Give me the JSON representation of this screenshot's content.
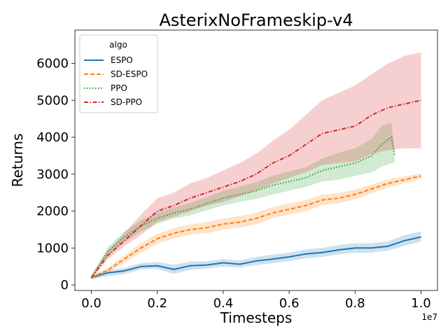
{
  "chart_data": {
    "type": "line",
    "title": "AsterixNoFrameskip-v4",
    "xlabel": "Timesteps",
    "ylabel": "Returns",
    "x_scale_label": "1e7",
    "xlim": [
      -0.05,
      1.05
    ],
    "ylim": [
      -150,
      6900
    ],
    "xticks": [
      0.0,
      0.2,
      0.4,
      0.6,
      0.8,
      1.0
    ],
    "xtick_labels": [
      "0.0",
      "0.2",
      "0.4",
      "0.6",
      "0.8",
      "1.0"
    ],
    "yticks": [
      0,
      1000,
      2000,
      3000,
      4000,
      5000,
      6000
    ],
    "ytick_labels": [
      "0",
      "1000",
      "2000",
      "3000",
      "4000",
      "5000",
      "6000"
    ],
    "grid": false,
    "legend": {
      "title": "algo",
      "position": "top-left"
    },
    "series": [
      {
        "name": "ESPO",
        "color": "#1f77b4",
        "dash": "solid",
        "x": [
          0.0,
          0.05,
          0.1,
          0.15,
          0.2,
          0.25,
          0.3,
          0.35,
          0.4,
          0.45,
          0.5,
          0.55,
          0.6,
          0.65,
          0.7,
          0.75,
          0.8,
          0.85,
          0.9,
          0.95,
          1.0
        ],
        "y": [
          200,
          330,
          380,
          500,
          520,
          420,
          520,
          540,
          600,
          560,
          650,
          700,
          760,
          840,
          880,
          950,
          1000,
          1000,
          1050,
          1200,
          1300
        ],
        "ylow": [
          150,
          240,
          290,
          420,
          440,
          300,
          410,
          440,
          500,
          470,
          540,
          590,
          650,
          720,
          760,
          830,
          870,
          880,
          930,
          1060,
          1180
        ],
        "yhigh": [
          250,
          400,
          460,
          590,
          620,
          550,
          630,
          640,
          700,
          660,
          760,
          820,
          880,
          960,
          1000,
          1080,
          1130,
          1130,
          1180,
          1350,
          1450
        ]
      },
      {
        "name": "SD-ESPO",
        "color": "#ff7f0e",
        "dash": "dashed",
        "x": [
          0.0,
          0.05,
          0.1,
          0.15,
          0.2,
          0.25,
          0.3,
          0.35,
          0.4,
          0.45,
          0.5,
          0.55,
          0.6,
          0.65,
          0.7,
          0.75,
          0.8,
          0.85,
          0.9,
          0.95,
          1.0
        ],
        "y": [
          200,
          400,
          700,
          1000,
          1250,
          1400,
          1500,
          1550,
          1650,
          1700,
          1800,
          1950,
          2050,
          2150,
          2300,
          2350,
          2450,
          2600,
          2750,
          2850,
          2950
        ],
        "ylow": [
          160,
          330,
          600,
          880,
          1120,
          1260,
          1360,
          1400,
          1500,
          1550,
          1640,
          1800,
          1900,
          2000,
          2160,
          2210,
          2320,
          2480,
          2640,
          2760,
          2880
        ],
        "yhigh": [
          240,
          470,
          800,
          1130,
          1380,
          1540,
          1640,
          1700,
          1800,
          1860,
          1960,
          2110,
          2210,
          2300,
          2440,
          2490,
          2580,
          2720,
          2860,
          2940,
          3020
        ]
      },
      {
        "name": "PPO",
        "color": "#2ca02c",
        "dash": "dotted",
        "x": [
          0.0,
          0.05,
          0.1,
          0.15,
          0.2,
          0.25,
          0.3,
          0.35,
          0.4,
          0.45,
          0.5,
          0.55,
          0.6,
          0.65,
          0.7,
          0.75,
          0.8,
          0.85,
          0.88,
          0.91,
          0.92
        ],
        "y": [
          200,
          900,
          1300,
          1600,
          1800,
          1950,
          2050,
          2200,
          2350,
          2450,
          2550,
          2700,
          2800,
          2900,
          3100,
          3200,
          3300,
          3500,
          3800,
          4000,
          3500
        ],
        "ylow": [
          150,
          780,
          1150,
          1450,
          1650,
          1800,
          1880,
          2020,
          2150,
          2250,
          2330,
          2450,
          2550,
          2650,
          2800,
          2850,
          2950,
          3050,
          3200,
          3300,
          3300
        ],
        "yhigh": [
          250,
          1020,
          1450,
          1750,
          1960,
          2100,
          2220,
          2380,
          2550,
          2660,
          2780,
          2950,
          3080,
          3180,
          3420,
          3580,
          3700,
          3950,
          4300,
          4400,
          3700
        ]
      },
      {
        "name": "SD-PPO",
        "color": "#d62728",
        "dash": "dashdot",
        "x": [
          0.0,
          0.05,
          0.1,
          0.15,
          0.2,
          0.25,
          0.3,
          0.35,
          0.4,
          0.45,
          0.5,
          0.55,
          0.6,
          0.65,
          0.7,
          0.75,
          0.8,
          0.85,
          0.9,
          0.95,
          1.0
        ],
        "y": [
          200,
          800,
          1200,
          1600,
          2000,
          2150,
          2350,
          2500,
          2650,
          2800,
          3000,
          3300,
          3500,
          3800,
          4100,
          4200,
          4300,
          4600,
          4800,
          4900,
          5000
        ],
        "ylow": [
          150,
          700,
          1050,
          1350,
          1700,
          1850,
          2000,
          2150,
          2250,
          2400,
          2550,
          2750,
          2900,
          3050,
          3250,
          3300,
          3350,
          3550,
          3650,
          3700,
          3700
        ],
        "yhigh": [
          250,
          950,
          1400,
          1900,
          2350,
          2500,
          2750,
          2900,
          3100,
          3300,
          3550,
          3900,
          4200,
          4600,
          5000,
          5200,
          5400,
          5700,
          6000,
          6200,
          6300
        ]
      }
    ]
  }
}
